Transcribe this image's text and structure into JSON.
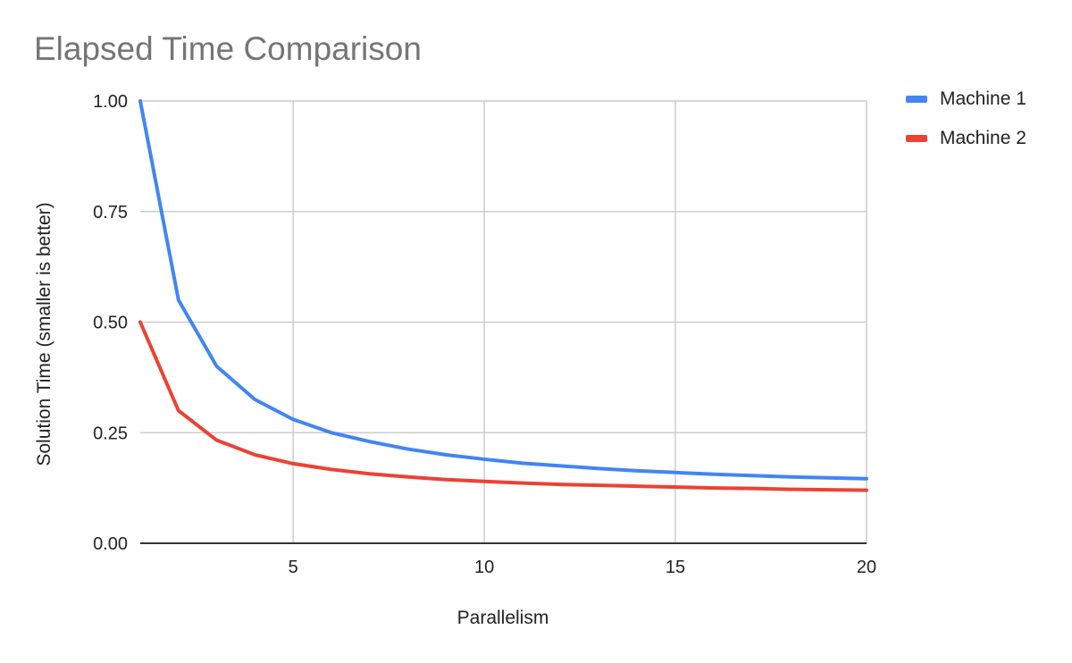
{
  "chart_data": {
    "type": "line",
    "title": "Elapsed Time Comparison",
    "xlabel": "Parallelism",
    "ylabel": "Solution Time (smaller is better)",
    "xlim": [
      1,
      20
    ],
    "ylim": [
      0,
      1
    ],
    "x_ticks": [
      5,
      10,
      15,
      20
    ],
    "x_tick_labels": [
      "5",
      "10",
      "15",
      "20"
    ],
    "y_ticks": [
      0,
      0.25,
      0.5,
      0.75,
      1.0
    ],
    "y_tick_labels": [
      "0.00",
      "0.25",
      "0.50",
      "0.75",
      "1.00"
    ],
    "grid": true,
    "legend_position": "right",
    "x": [
      1,
      2,
      3,
      4,
      5,
      6,
      7,
      8,
      9,
      10,
      11,
      12,
      13,
      14,
      15,
      16,
      17,
      18,
      19,
      20
    ],
    "series": [
      {
        "name": "Machine 1",
        "color": "#4285f4",
        "values": [
          1.0,
          0.55,
          0.4,
          0.325,
          0.28,
          0.25,
          0.23,
          0.213,
          0.2,
          0.19,
          0.181,
          0.175,
          0.169,
          0.164,
          0.16,
          0.156,
          0.153,
          0.15,
          0.148,
          0.146
        ]
      },
      {
        "name": "Machine 2",
        "color": "#ea4335",
        "values": [
          0.5,
          0.3,
          0.233,
          0.2,
          0.18,
          0.167,
          0.157,
          0.15,
          0.144,
          0.14,
          0.136,
          0.133,
          0.131,
          0.129,
          0.127,
          0.125,
          0.124,
          0.122,
          0.121,
          0.12
        ]
      }
    ]
  }
}
